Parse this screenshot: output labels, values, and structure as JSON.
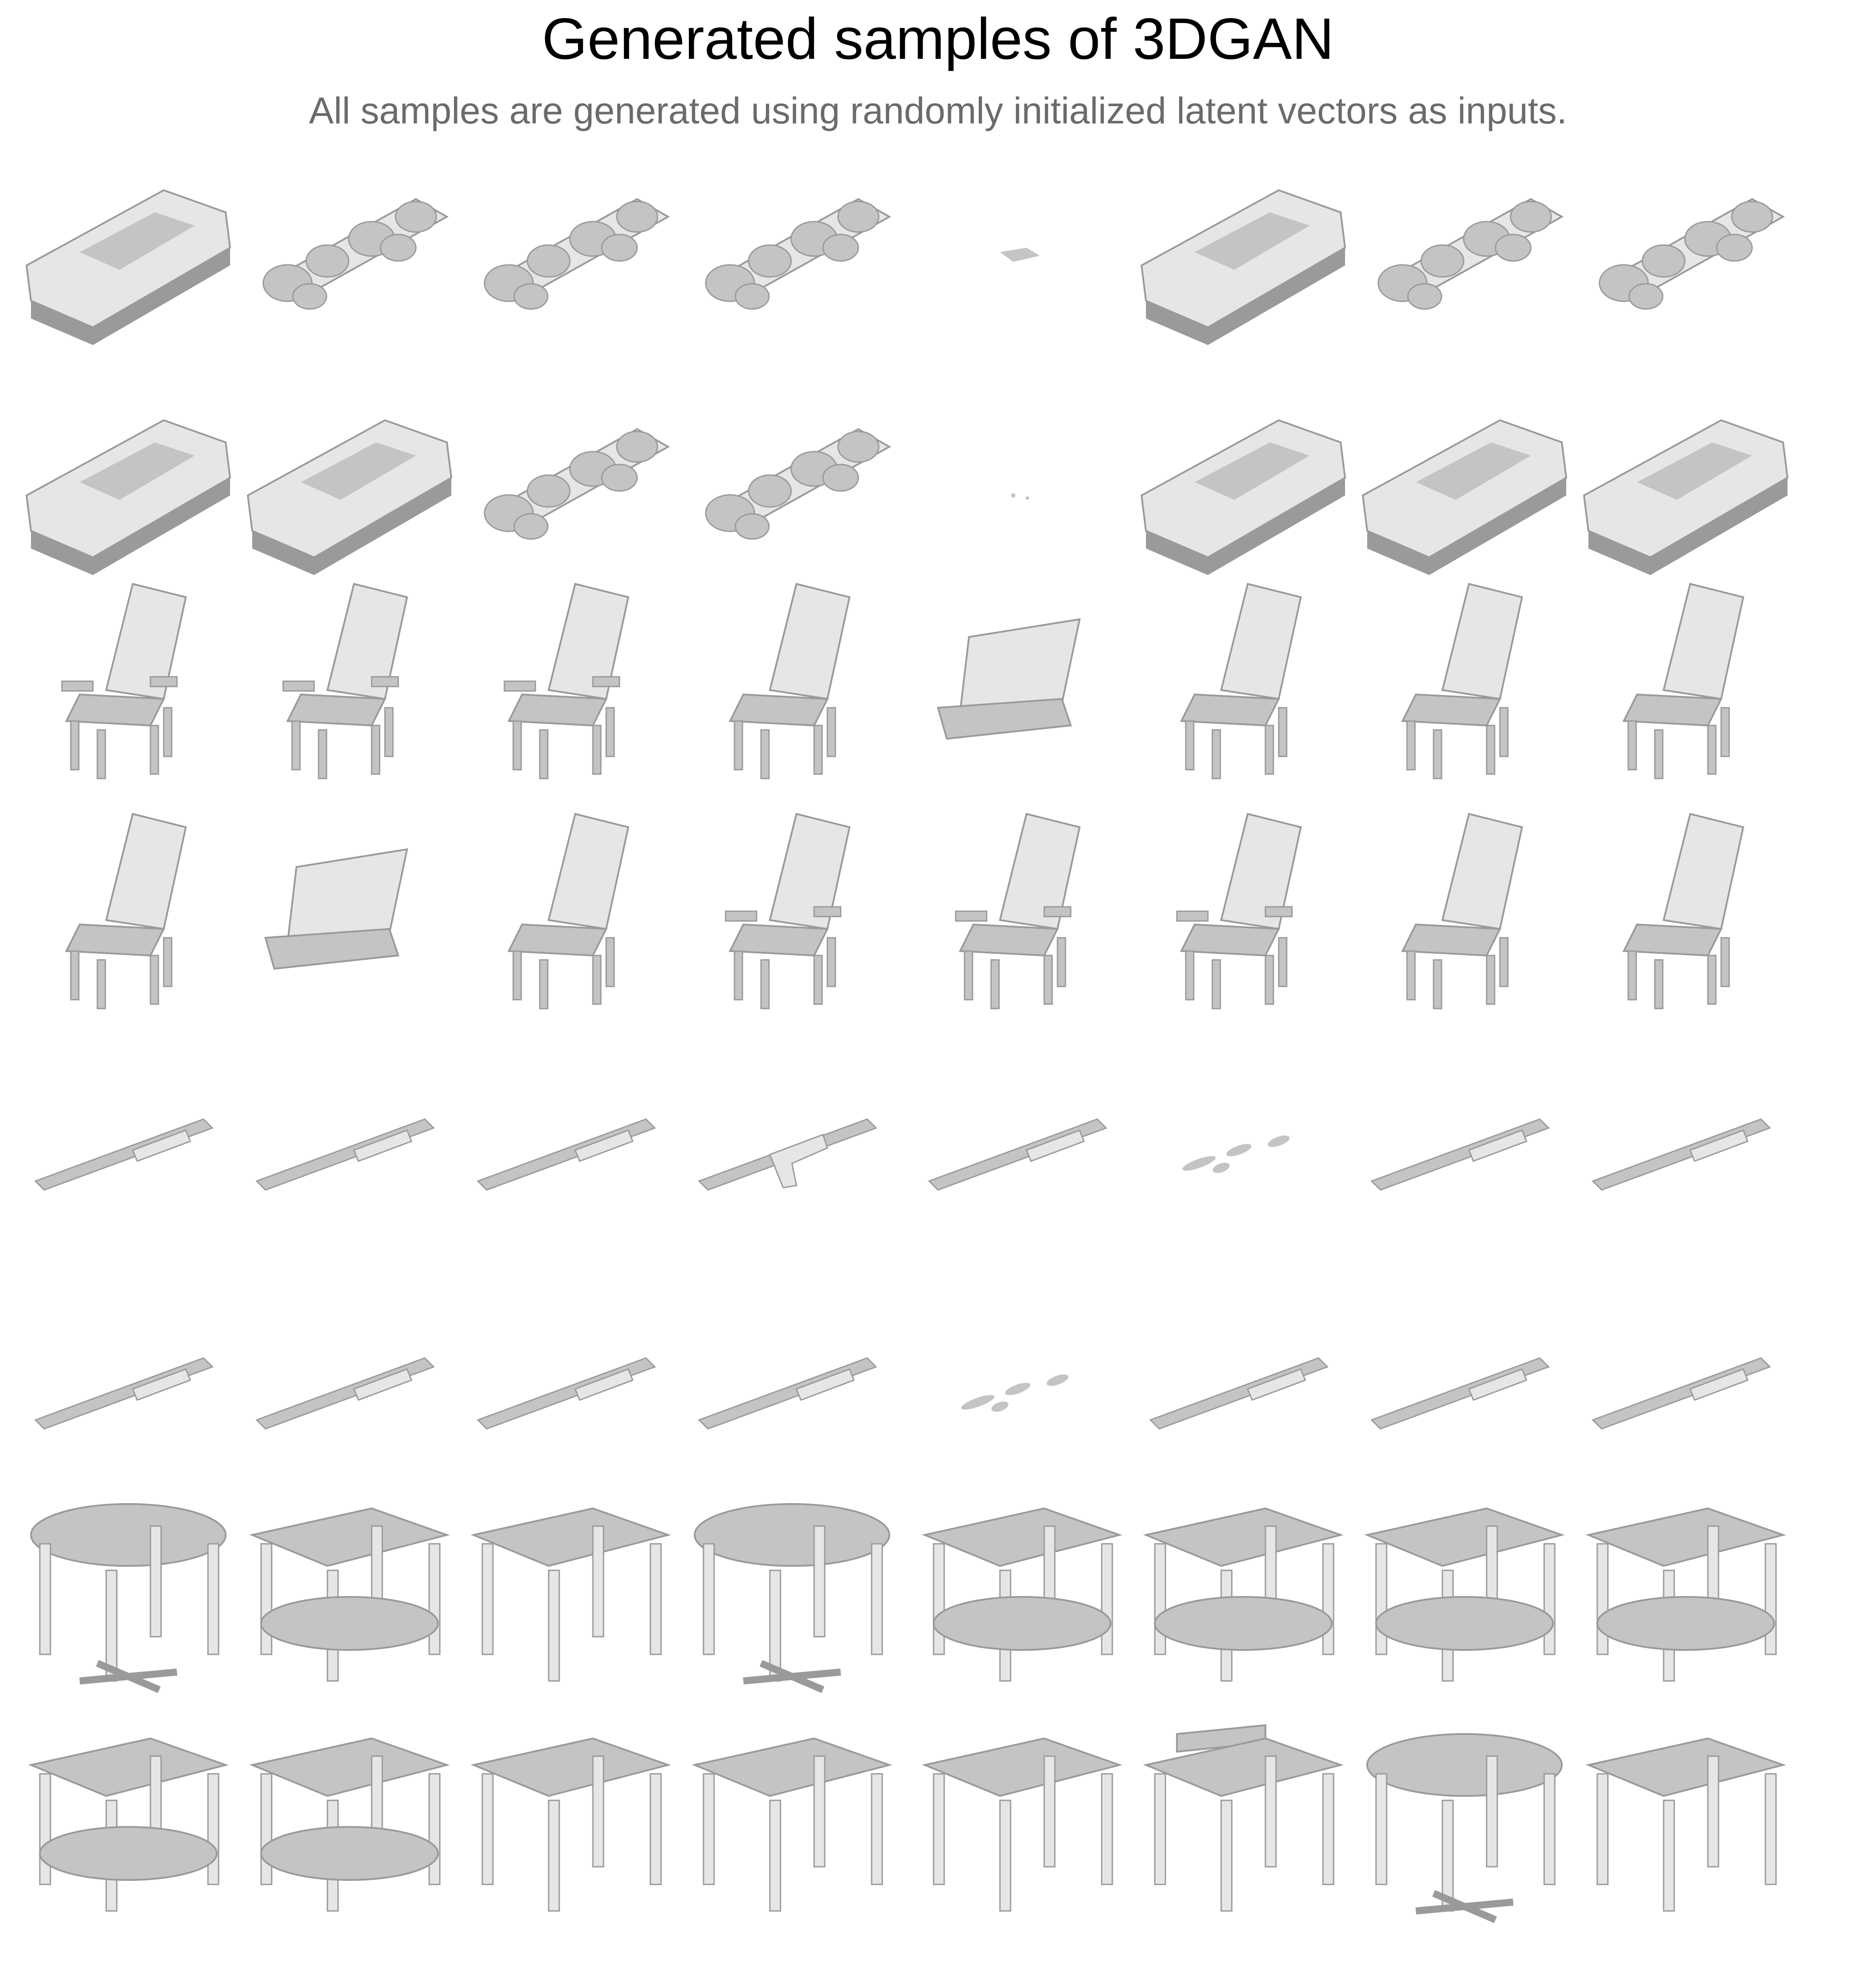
{
  "figure": {
    "title": "Generated samples of 3DGAN",
    "subtitle": "All samples are generated using randomly initialized latent vectors as inputs."
  },
  "colors": {
    "background": "#ffffff",
    "shape_light": "#e6e6e6",
    "shape_mid": "#c4c4c4",
    "shape_dark": "#9a9a9a",
    "subtitle": "#6b6b6b"
  },
  "rows": [
    {
      "category": "car",
      "samples": [
        "sedan",
        "fragmented",
        "fragmented",
        "fragmented",
        "tiny",
        "sedan",
        "fragmented",
        "fragmented"
      ]
    },
    {
      "category": "car",
      "samples": [
        "sedan",
        "sedan",
        "fragmented",
        "fragmented",
        "empty",
        "sedan",
        "sedan",
        "sedan"
      ]
    },
    {
      "category": "chair",
      "samples": [
        "armchair",
        "armchair",
        "armchair",
        "chair",
        "lounge",
        "chair",
        "chair",
        "chair"
      ]
    },
    {
      "category": "chair",
      "samples": [
        "chair",
        "lounge",
        "chair",
        "armchair",
        "armchair",
        "armchair",
        "chair",
        "chair"
      ]
    },
    {
      "category": "gun",
      "samples": [
        "rifle",
        "rifle",
        "rifle",
        "pistol",
        "rifle",
        "fragmented",
        "rifle",
        "rifle"
      ]
    },
    {
      "category": "gun",
      "samples": [
        "rifle",
        "rifle",
        "rifle",
        "rifle",
        "fragmented",
        "rifle",
        "rifle",
        "rifle"
      ]
    },
    {
      "category": "table",
      "samples": [
        "round",
        "two-tier",
        "square",
        "round",
        "two-tier",
        "two-tier",
        "two-tier",
        "two-tier"
      ]
    },
    {
      "category": "table",
      "samples": [
        "two-tier",
        "two-tier",
        "square",
        "square",
        "square",
        "chair-like",
        "round",
        "square"
      ]
    }
  ]
}
